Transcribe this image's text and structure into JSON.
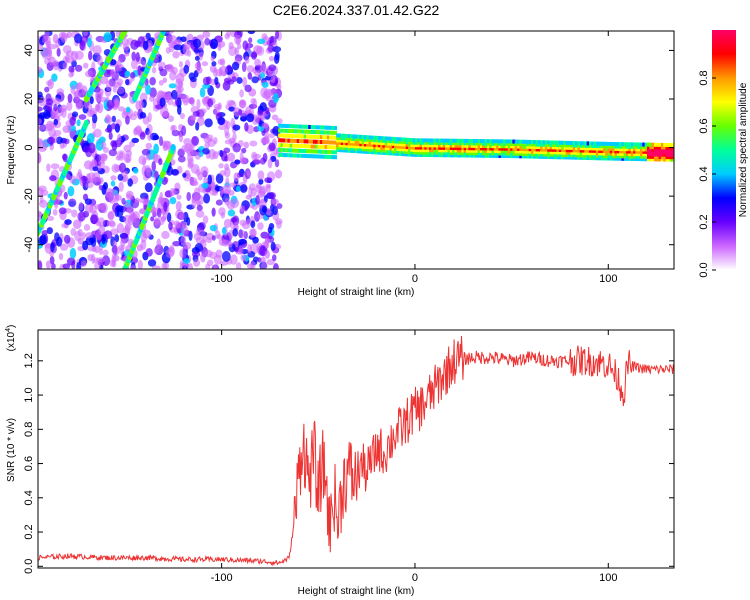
{
  "title": "C2E6.2024.337.01.42.G22",
  "chart_data": [
    {
      "type": "heatmap",
      "xlabel": "Height of straight line (km)",
      "ylabel": "Frequency (Hz)",
      "xlim": [
        -195,
        134
      ],
      "ylim": [
        -50,
        48
      ],
      "xticks": [
        -100,
        0,
        100
      ],
      "xtick_labels": [
        "-100",
        "0",
        "100"
      ],
      "yticks": [
        -40,
        -20,
        0,
        20,
        40
      ],
      "ytick_labels": [
        "-40",
        "-20",
        "0",
        "20",
        "40"
      ],
      "colorbar": {
        "label": "Normalized spectral amplitude",
        "range": [
          0,
          1
        ],
        "ticks": [
          0.0,
          0.2,
          0.4,
          0.6,
          0.8
        ],
        "tick_labels": [
          "0.0",
          "0.2",
          "0.4",
          "0.6",
          "0.8"
        ],
        "colors": [
          "#ffffff",
          "#cc66ff",
          "#6600ff",
          "#0000ff",
          "#00ccff",
          "#00ff99",
          "#66ff00",
          "#ffff00",
          "#ff9900",
          "#ff0000",
          "#ff0066"
        ]
      },
      "features": {
        "scatter_region_x": [
          -195,
          -70
        ],
        "band_x": [
          -70,
          134
        ],
        "band_freq_hz": [
          [
            -70,
            3
          ],
          [
            -40,
            2
          ],
          [
            0,
            0
          ],
          [
            50,
            -0.5
          ],
          [
            100,
            -1.5
          ],
          [
            134,
            -2
          ]
        ],
        "diagonal_traces": [
          {
            "x0": -195,
            "y0": -35,
            "x1": -170,
            "y1": 10
          },
          {
            "x0": -170,
            "y0": 20,
            "x1": -150,
            "y1": 48
          },
          {
            "x0": -150,
            "y0": -50,
            "x1": -125,
            "y1": 0
          },
          {
            "x0": -145,
            "y0": 20,
            "x1": -130,
            "y1": 48
          }
        ]
      }
    },
    {
      "type": "line",
      "xlabel": "Height of straight line (km)",
      "ylabel": "SNR (10 * v/v)",
      "scale_label": "(x10",
      "scale_exp": "4",
      "scale_close": ")",
      "xlim": [
        -195,
        134
      ],
      "ylim": [
        -0.01,
        1.38
      ],
      "xticks": [
        -100,
        0,
        100
      ],
      "xtick_labels": [
        "-100",
        "0",
        "100"
      ],
      "yticks": [
        0.0,
        0.2,
        0.4,
        0.6,
        0.8,
        1.0,
        1.2
      ],
      "ytick_labels": [
        "0.0",
        "0.2",
        "0.4",
        "0.6",
        "0.8",
        "1.0",
        "1.2"
      ],
      "color": "#ee3333",
      "series": [
        {
          "x": [
            -195,
            -180,
            -160,
            -140,
            -120,
            -100,
            -80,
            -70,
            -65,
            -62,
            -60,
            -58,
            -55,
            -52,
            -50,
            -48,
            -46,
            -44,
            -42,
            -40,
            -37,
            -34,
            -31,
            -28,
            -25,
            -22,
            -19,
            -16,
            -13,
            -10,
            -7,
            -4,
            -1,
            2,
            5,
            8,
            11,
            14,
            17,
            20,
            25,
            30,
            35,
            40,
            50,
            60,
            70,
            80,
            90,
            100,
            105,
            108,
            110,
            115,
            120,
            125,
            134
          ],
          "y": [
            0.05,
            0.06,
            0.05,
            0.05,
            0.04,
            0.04,
            0.03,
            0.02,
            0.05,
            0.3,
            0.55,
            0.75,
            0.5,
            0.65,
            0.4,
            0.6,
            0.5,
            0.2,
            0.45,
            0.25,
            0.5,
            0.55,
            0.5,
            0.6,
            0.55,
            0.62,
            0.7,
            0.65,
            0.72,
            0.78,
            0.8,
            0.85,
            0.9,
            0.92,
            0.95,
            1.0,
            1.05,
            1.1,
            1.15,
            1.2,
            1.21,
            1.22,
            1.22,
            1.22,
            1.2,
            1.22,
            1.2,
            1.2,
            1.2,
            1.18,
            1.1,
            1.0,
            1.18,
            1.16,
            1.15,
            1.15,
            1.15
          ]
        }
      ]
    }
  ]
}
